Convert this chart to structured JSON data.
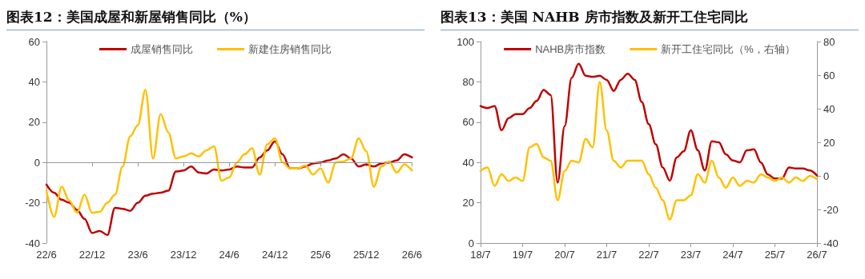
{
  "chart_data": [
    {
      "type": "line",
      "title": "图表12：美国成屋和新屋销售同比（%）",
      "categories": [
        "22/6",
        null,
        null,
        null,
        null,
        null,
        "22/12",
        null,
        null,
        null,
        null,
        null,
        "23/6",
        null,
        null,
        null,
        null,
        null,
        "23/12",
        null,
        null,
        null,
        null,
        null,
        "24/6",
        null,
        null,
        null,
        null,
        null,
        "24/12",
        null,
        null,
        null,
        null,
        null,
        "25/6",
        null,
        null,
        null,
        null,
        null,
        "25/12",
        null,
        null,
        null,
        null,
        null,
        "26/6"
      ],
      "series": [
        {
          "name": "成屋销售同比",
          "color": "#c00000",
          "values": [
            -11,
            -15,
            -18.5,
            -20,
            -23.5,
            -28,
            -35,
            -34,
            -36,
            -22.5,
            -23,
            -24,
            -20,
            -16.5,
            -15.5,
            -15,
            -14,
            -4.5,
            -4,
            -2,
            -5,
            -5.5,
            -3.5,
            -4,
            -3.5,
            -2,
            -2.5,
            -2.5,
            2.5,
            6,
            10.5,
            4,
            -3,
            -3,
            -2,
            -0.5,
            0,
            1,
            2,
            4,
            2,
            -2,
            -1,
            -2,
            -0.5,
            0,
            1,
            4,
            2.5
          ]
        },
        {
          "name": "新建住房销售同比",
          "color": "#ffc000",
          "values": [
            -14,
            -27,
            -12,
            -19,
            -25,
            -16,
            -25,
            -24.5,
            -20,
            -16,
            -2,
            13,
            18.5,
            36,
            2,
            24,
            15,
            2,
            3,
            4.5,
            3,
            6,
            8,
            -9,
            -7.5,
            0,
            4,
            7,
            -6,
            9,
            12,
            0,
            -3,
            -3,
            -1.5,
            -6,
            -3,
            -10,
            0,
            0.5,
            2,
            12,
            5.5,
            -12,
            -2,
            0.5,
            -5,
            -1,
            -4
          ]
        }
      ],
      "ylim": [
        -40,
        60
      ],
      "yticks": [
        -40,
        -20,
        0,
        20,
        40,
        60
      ],
      "ref_lines": [
        {
          "axis": "y",
          "value": 0,
          "color": "#999999"
        }
      ],
      "grid": false,
      "legend": "top",
      "marker": "none",
      "line_style": "solid"
    },
    {
      "type": "line",
      "title": "图表13：美国 NAHB 房市指数及新开工住宅同比",
      "categories": [
        "18/7",
        null,
        null,
        null,
        null,
        null,
        "19/7",
        null,
        null,
        null,
        null,
        null,
        "20/7",
        null,
        null,
        null,
        null,
        null,
        "21/7",
        null,
        null,
        null,
        null,
        null,
        "22/7",
        null,
        null,
        null,
        null,
        null,
        "23/7",
        null,
        null,
        null,
        null,
        null,
        "24/7",
        null,
        null,
        null,
        null,
        null,
        "25/7",
        null,
        null,
        null,
        null,
        null,
        "26/7"
      ],
      "series": [
        {
          "name": "NAHB房市指数",
          "color": "#c00000",
          "values": [
            68,
            67,
            68,
            56,
            62,
            64,
            64,
            67,
            70.5,
            76,
            73.5,
            30,
            58,
            82,
            89,
            83,
            82.5,
            83,
            81,
            75.5,
            81,
            84,
            81,
            70,
            59,
            49,
            37.5,
            31,
            42.5,
            45.5,
            56,
            46,
            36,
            50.5,
            50,
            44,
            41,
            40,
            46,
            46.5,
            40,
            34,
            32,
            32,
            37.5,
            37,
            37,
            36,
            33.5
          ]
        },
        {
          "name": "新开工住宅同比（%，右轴）",
          "color": "#ffc000",
          "axis": "y2",
          "values": [
            3,
            5,
            -6,
            1,
            -3,
            -1,
            -3,
            17,
            19,
            11,
            9,
            -14.5,
            3,
            9,
            8,
            22,
            17,
            56,
            27,
            9,
            5,
            9,
            9,
            9,
            1,
            -7,
            -14.5,
            -26,
            -14.5,
            -14.5,
            -11.5,
            1,
            -4,
            9,
            -1,
            -7,
            -1,
            -6,
            -3,
            -4,
            1,
            -1,
            -3,
            -1,
            -4,
            -1,
            -3,
            0,
            -2
          ]
        }
      ],
      "ylim": [
        0,
        100
      ],
      "yticks": [
        0,
        20,
        40,
        60,
        80,
        100
      ],
      "y2lim": [
        -40,
        80
      ],
      "y2ticks": [
        -40,
        -20,
        0,
        20,
        40,
        60,
        80
      ],
      "grid": false,
      "legend": "top",
      "marker": "none",
      "line_style": "solid"
    }
  ]
}
